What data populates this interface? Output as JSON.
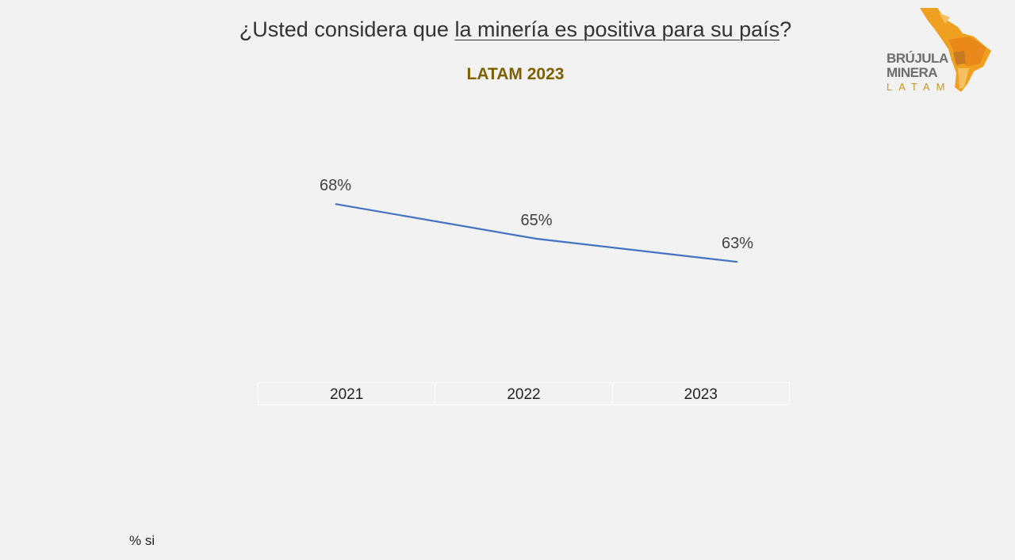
{
  "header": {
    "title_prefix": "¿Usted considera que ",
    "title_underlined": "la minería es positiva para su país",
    "title_suffix": "?",
    "subtitle": "LATAM 2023"
  },
  "logo": {
    "line1": "BRÚJULA",
    "line2": "MINERA",
    "line3": "LATAM",
    "colors": [
      "#f0a020",
      "#e8891a",
      "#f5c060"
    ]
  },
  "footnote": "% si",
  "chart_data": {
    "type": "line",
    "categories": [
      "2021",
      "2022",
      "2023"
    ],
    "series": [
      {
        "values": [
          68,
          65,
          63
        ],
        "labels": [
          "68%",
          "65%",
          "63%"
        ],
        "color": "#4472c4"
      }
    ],
    "title": "¿Usted considera que la minería es positiva para su país?",
    "subtitle": "LATAM 2023",
    "ylim": [
      55,
      75
    ],
    "grid": false,
    "legend": "none"
  }
}
